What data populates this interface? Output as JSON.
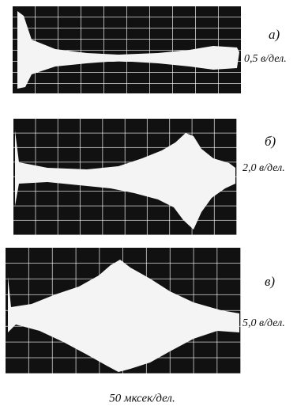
{
  "panels": [
    {
      "label": "а)",
      "scale": "0,5 в/дел."
    },
    {
      "label": "б)",
      "scale": "2,0 в/дел."
    },
    {
      "label": "в)",
      "scale": "5,0 в/дел."
    }
  ],
  "caption": "50 мксек/дел."
}
